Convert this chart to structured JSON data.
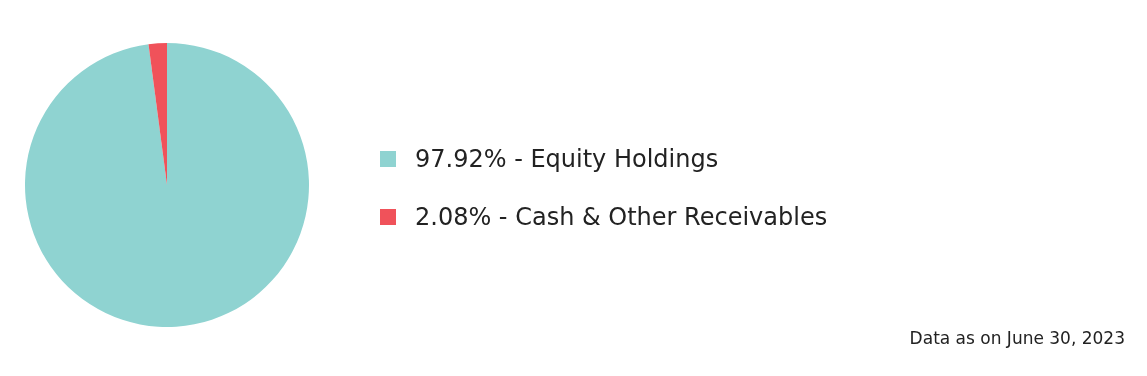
{
  "chart_data": {
    "type": "pie",
    "categories": [
      "97.92% - Equity Holdings",
      "2.08% - Cash & Other Receivables"
    ],
    "values": [
      97.92,
      2.08
    ],
    "colors": [
      "#8fd3d1",
      "#f0525a"
    ],
    "legend": "right",
    "annotations": [
      "Data as on June 30, 2023"
    ]
  }
}
